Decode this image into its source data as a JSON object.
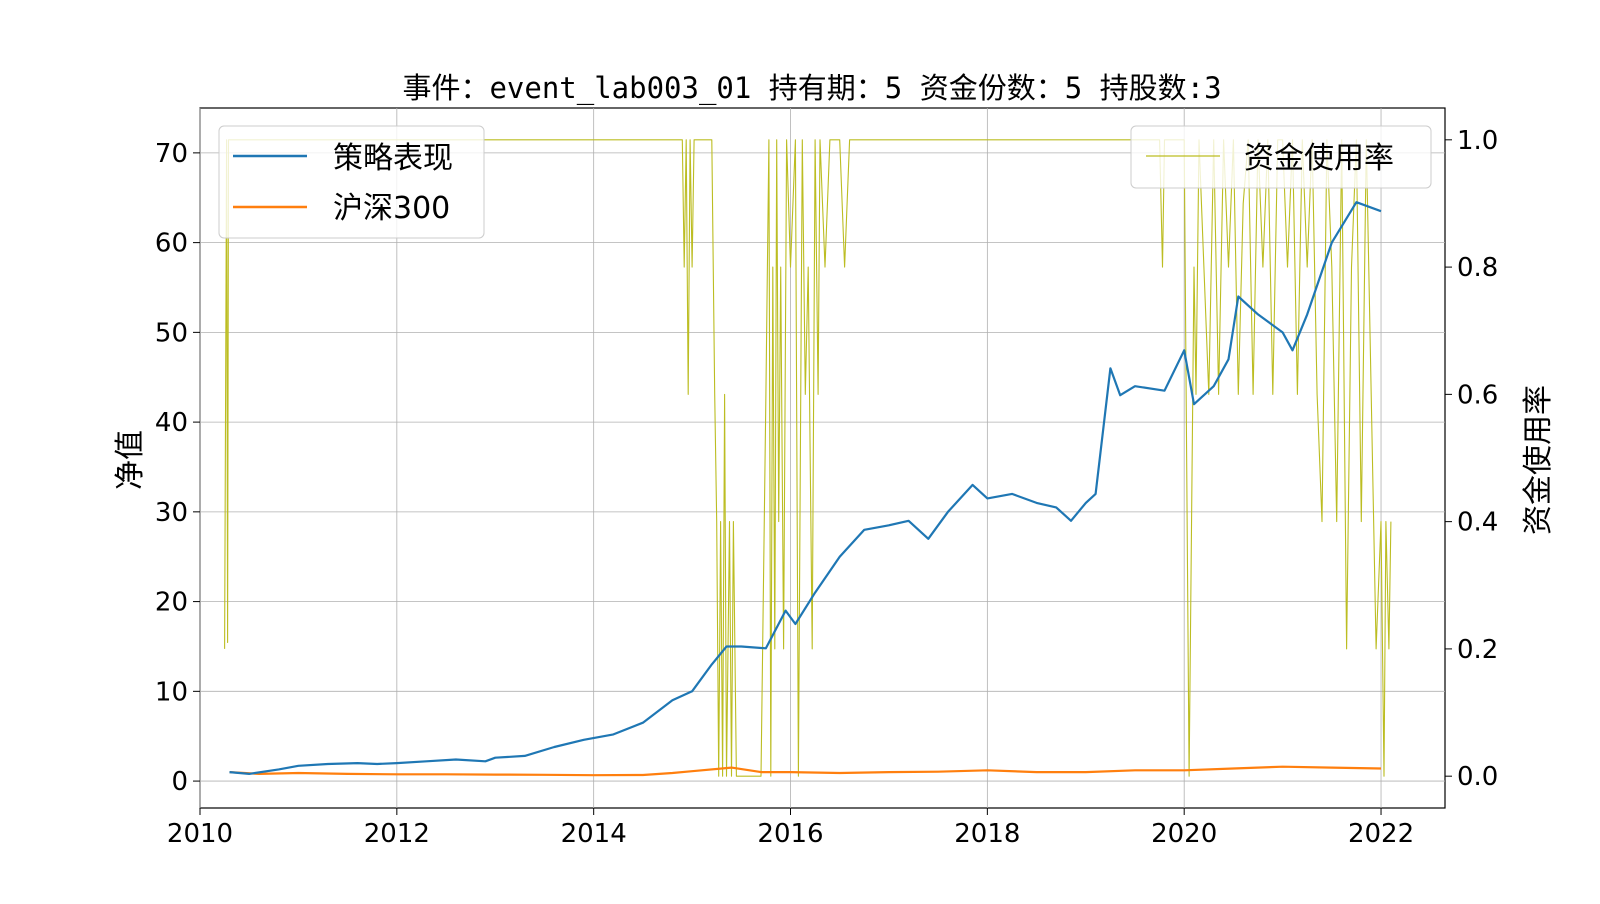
{
  "chart_data": {
    "type": "line",
    "title": "事件：event_lab003_01 持有期：5 资金份数：5 持股数:3",
    "ylabel_left": "净值",
    "ylabel_right": "资金使用率",
    "xlim": [
      2010.0,
      2022.65
    ],
    "ylim_left": [
      -3,
      75
    ],
    "ylim_right": [
      -0.05,
      1.05
    ],
    "x_ticks": [
      2010,
      2012,
      2014,
      2016,
      2018,
      2020,
      2022
    ],
    "x_tick_labels": [
      "2010",
      "2012",
      "2014",
      "2016",
      "2018",
      "2020",
      "2022"
    ],
    "y_left_ticks": [
      0,
      10,
      20,
      30,
      40,
      50,
      60,
      70
    ],
    "y_left_tick_labels": [
      "0",
      "10",
      "20",
      "30",
      "40",
      "50",
      "60",
      "70"
    ],
    "y_right_ticks": [
      0.0,
      0.2,
      0.4,
      0.6,
      0.8,
      1.0
    ],
    "y_right_tick_labels": [
      "0.0",
      "0.2",
      "0.4",
      "0.6",
      "0.8",
      "1.0"
    ],
    "grid": true,
    "legend_left": {
      "position": "upper-left",
      "entries": [
        "策略表现",
        "沪深300"
      ]
    },
    "legend_right": {
      "position": "upper-right",
      "entries": [
        "资金使用率"
      ]
    },
    "series": [
      {
        "name": "策略表现",
        "axis": "left",
        "color": "#1f77b4",
        "x": [
          2010.3,
          2010.5,
          2010.8,
          2011.0,
          2011.3,
          2011.6,
          2011.8,
          2012.0,
          2012.3,
          2012.6,
          2012.9,
          2013.0,
          2013.3,
          2013.6,
          2013.9,
          2014.2,
          2014.5,
          2014.8,
          2015.0,
          2015.2,
          2015.35,
          2015.5,
          2015.75,
          2015.95,
          2016.05,
          2016.25,
          2016.5,
          2016.75,
          2017.0,
          2017.2,
          2017.4,
          2017.6,
          2017.85,
          2018.0,
          2018.25,
          2018.5,
          2018.7,
          2018.85,
          2019.0,
          2019.1,
          2019.25,
          2019.35,
          2019.5,
          2019.8,
          2020.0,
          2020.1,
          2020.3,
          2020.45,
          2020.55,
          2020.75,
          2021.0,
          2021.1,
          2021.25,
          2021.5,
          2021.75,
          2022.0
        ],
        "values": [
          1.0,
          0.8,
          1.3,
          1.7,
          1.9,
          2.0,
          1.9,
          2.0,
          2.2,
          2.4,
          2.2,
          2.6,
          2.8,
          3.8,
          4.6,
          5.2,
          6.5,
          9.0,
          10.0,
          13.0,
          15.0,
          15.0,
          14.8,
          19.0,
          17.5,
          21.0,
          25.0,
          28.0,
          28.5,
          29.0,
          27.0,
          30.0,
          33.0,
          31.5,
          32.0,
          31.0,
          30.5,
          29.0,
          31.0,
          32.0,
          46.0,
          43.0,
          44.0,
          43.5,
          48.0,
          42.0,
          44.0,
          47.0,
          54.0,
          52.0,
          50.0,
          48.0,
          52.0,
          60.0,
          64.5,
          63.5
        ]
      },
      {
        "name": "沪深300",
        "axis": "left",
        "color": "#ff7f0e",
        "x": [
          2010.3,
          2010.6,
          2011.0,
          2011.5,
          2012.0,
          2012.5,
          2013.0,
          2013.5,
          2014.0,
          2014.5,
          2014.8,
          2015.0,
          2015.4,
          2015.7,
          2016.0,
          2016.5,
          2017.0,
          2017.5,
          2018.0,
          2018.5,
          2019.0,
          2019.5,
          2020.0,
          2020.5,
          2021.0,
          2021.5,
          2022.0
        ],
        "values": [
          1.0,
          0.8,
          0.9,
          0.8,
          0.75,
          0.75,
          0.72,
          0.7,
          0.65,
          0.68,
          0.9,
          1.1,
          1.5,
          1.0,
          1.0,
          0.9,
          1.0,
          1.05,
          1.2,
          1.0,
          1.0,
          1.2,
          1.2,
          1.4,
          1.6,
          1.5,
          1.4
        ]
      },
      {
        "name": "资金使用率",
        "axis": "right",
        "color": "#bcbd22",
        "x": [
          2010.25,
          2010.27,
          2010.28,
          2010.29,
          2011.0,
          2012.0,
          2013.0,
          2014.0,
          2014.9,
          2014.92,
          2014.94,
          2014.96,
          2014.98,
          2015.0,
          2015.02,
          2015.04,
          2015.06,
          2015.1,
          2015.2,
          2015.23,
          2015.25,
          2015.27,
          2015.29,
          2015.31,
          2015.33,
          2015.35,
          2015.38,
          2015.4,
          2015.42,
          2015.45,
          2015.5,
          2015.55,
          2015.6,
          2015.65,
          2015.7,
          2015.75,
          2015.78,
          2015.8,
          2015.82,
          2015.84,
          2015.86,
          2015.88,
          2015.9,
          2015.93,
          2015.96,
          2016.0,
          2016.05,
          2016.08,
          2016.12,
          2016.15,
          2016.18,
          2016.22,
          2016.25,
          2016.28,
          2016.3,
          2016.35,
          2016.4,
          2016.5,
          2016.55,
          2016.6,
          2017.0,
          2018.0,
          2019.0,
          2019.5,
          2019.75,
          2019.78,
          2019.8,
          2019.85,
          2020.0,
          2020.05,
          2020.1,
          2020.12,
          2020.15,
          2020.2,
          2020.25,
          2020.3,
          2020.35,
          2020.4,
          2020.45,
          2020.5,
          2020.55,
          2020.6,
          2020.65,
          2020.7,
          2020.75,
          2020.8,
          2020.85,
          2020.9,
          2020.95,
          2021.0,
          2021.05,
          2021.1,
          2021.15,
          2021.2,
          2021.25,
          2021.3,
          2021.35,
          2021.4,
          2021.45,
          2021.5,
          2021.55,
          2021.6,
          2021.65,
          2021.7,
          2021.75,
          2021.8,
          2021.85,
          2021.9,
          2021.95,
          2022.0,
          2022.03,
          2022.05,
          2022.08,
          2022.1
        ],
        "values": [
          0.2,
          1.0,
          0.21,
          1.0,
          1.0,
          1.0,
          1.0,
          1.0,
          1.0,
          0.8,
          1.0,
          0.6,
          1.0,
          0.8,
          1.0,
          1.0,
          1.0,
          1.0,
          1.0,
          0.6,
          0.4,
          0.0,
          0.4,
          0.0,
          0.6,
          0.0,
          0.4,
          0.0,
          0.4,
          0.0,
          0.0,
          0.0,
          0.0,
          0.0,
          0.0,
          0.6,
          1.0,
          0.0,
          0.8,
          0.2,
          1.0,
          0.4,
          0.8,
          0.2,
          1.0,
          0.8,
          1.0,
          0.0,
          1.0,
          0.6,
          0.8,
          0.2,
          1.0,
          0.6,
          1.0,
          0.8,
          1.0,
          1.0,
          0.8,
          1.0,
          1.0,
          1.0,
          1.0,
          1.0,
          1.0,
          0.8,
          1.0,
          1.0,
          1.0,
          0.0,
          0.8,
          0.6,
          1.0,
          0.8,
          0.6,
          1.0,
          0.6,
          1.0,
          0.8,
          1.0,
          0.6,
          0.9,
          1.0,
          0.6,
          1.0,
          0.8,
          1.0,
          0.6,
          1.0,
          1.0,
          0.8,
          1.0,
          0.6,
          1.0,
          0.8,
          1.0,
          0.6,
          0.4,
          1.0,
          0.8,
          0.4,
          1.0,
          0.2,
          0.8,
          1.0,
          0.4,
          1.0,
          0.6,
          0.2,
          0.4,
          0.0,
          0.4,
          0.2,
          0.4
        ]
      }
    ]
  }
}
